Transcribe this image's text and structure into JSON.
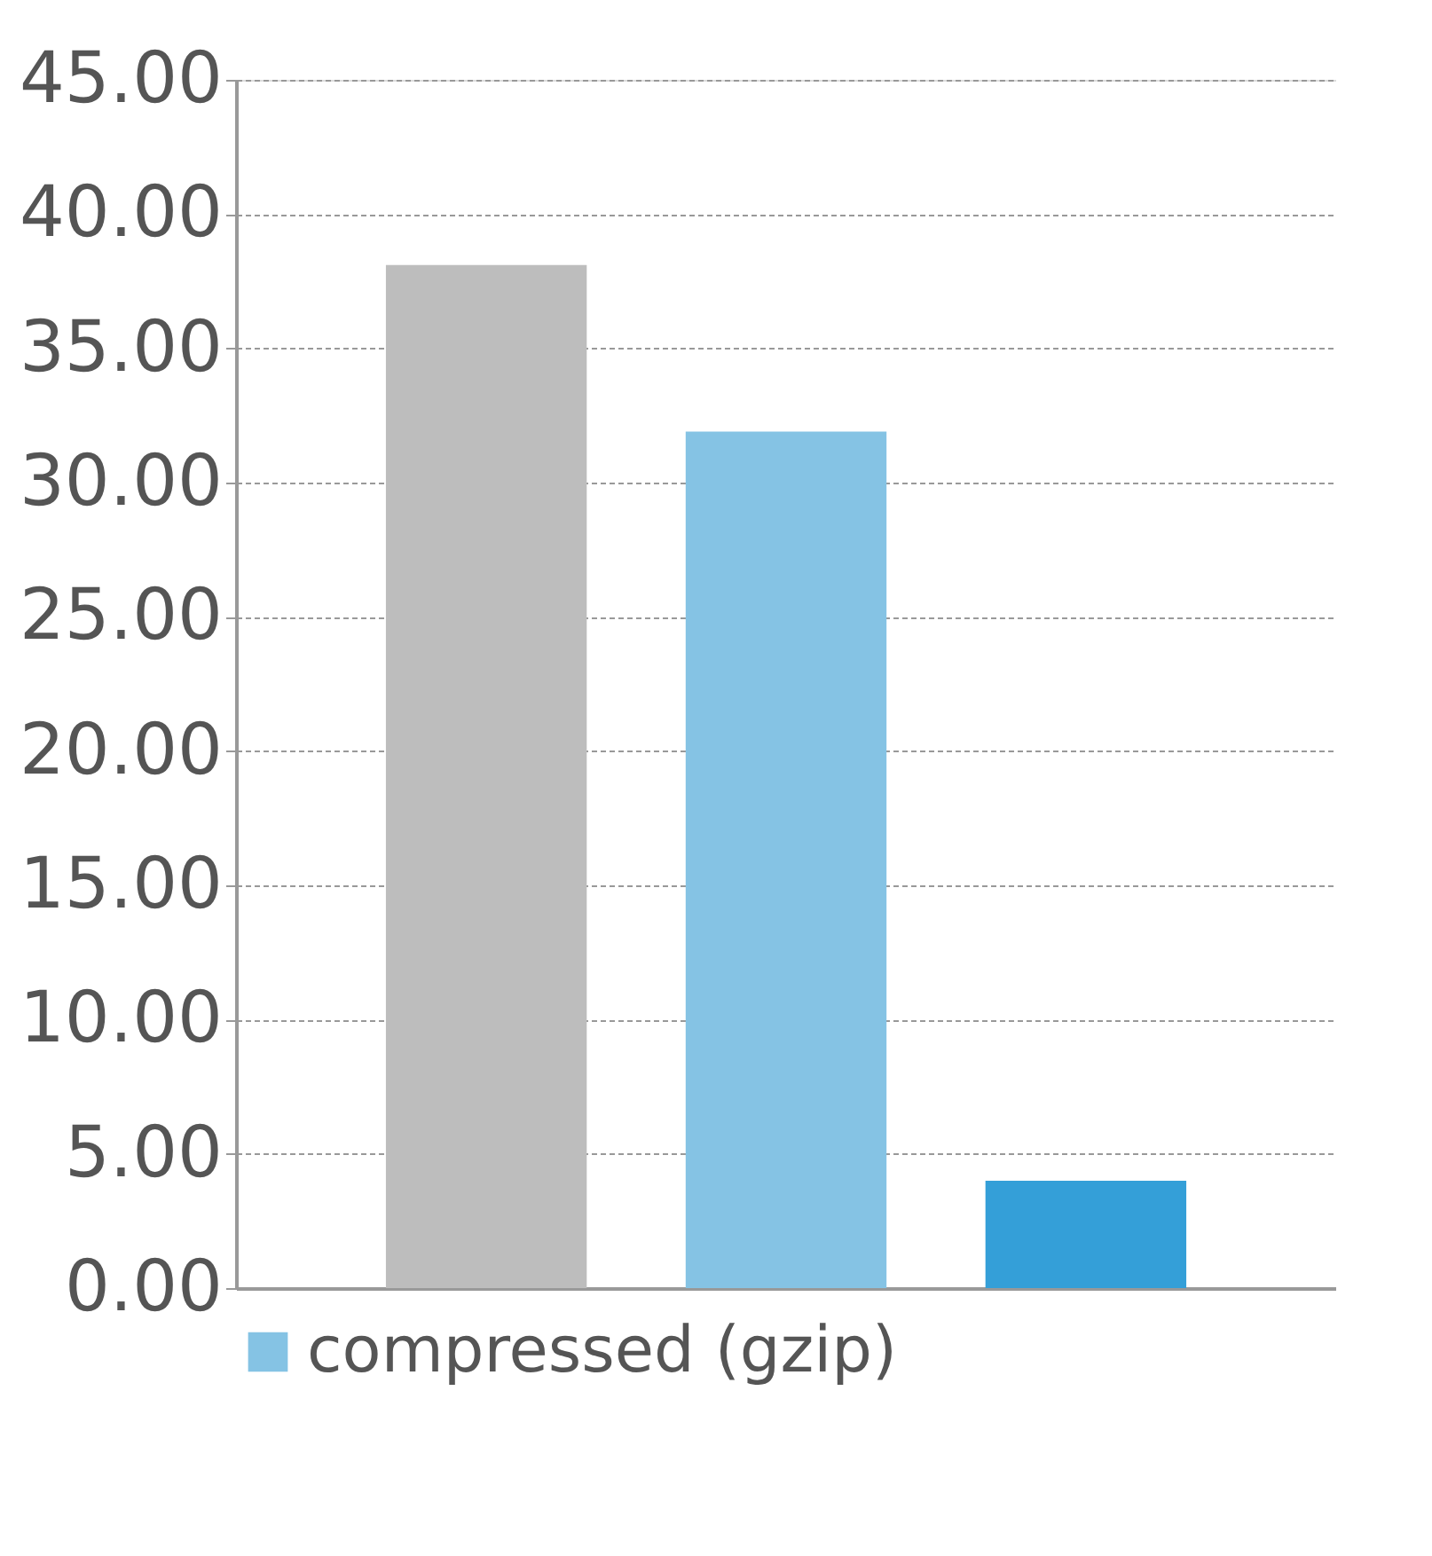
{
  "chart_data": {
    "type": "bar",
    "categories": [
      null,
      null,
      null
    ],
    "series": [
      {
        "name": "compressed (gzip)",
        "color": "#85c3e4",
        "values": [
          null,
          31.9,
          null
        ]
      },
      {
        "color": "#bdbdbd",
        "values": [
          38.1,
          null,
          null
        ]
      },
      {
        "color": "#349fd8",
        "values": [
          null,
          null,
          4.0
        ]
      }
    ],
    "ylim": [
      0,
      45
    ],
    "yticks": [
      {
        "value": 0,
        "label": "0.00"
      },
      {
        "value": 5,
        "label": "5.00"
      },
      {
        "value": 10,
        "label": "10.00"
      },
      {
        "value": 15,
        "label": "15.00"
      },
      {
        "value": 20,
        "label": "20.00"
      },
      {
        "value": 25,
        "label": "25.00"
      },
      {
        "value": 30,
        "label": "30.00"
      },
      {
        "value": 35,
        "label": "35.00"
      },
      {
        "value": 40,
        "label": "40.00"
      },
      {
        "value": 45,
        "label": "45.00"
      }
    ],
    "grid": "y",
    "legend": "bottom"
  }
}
